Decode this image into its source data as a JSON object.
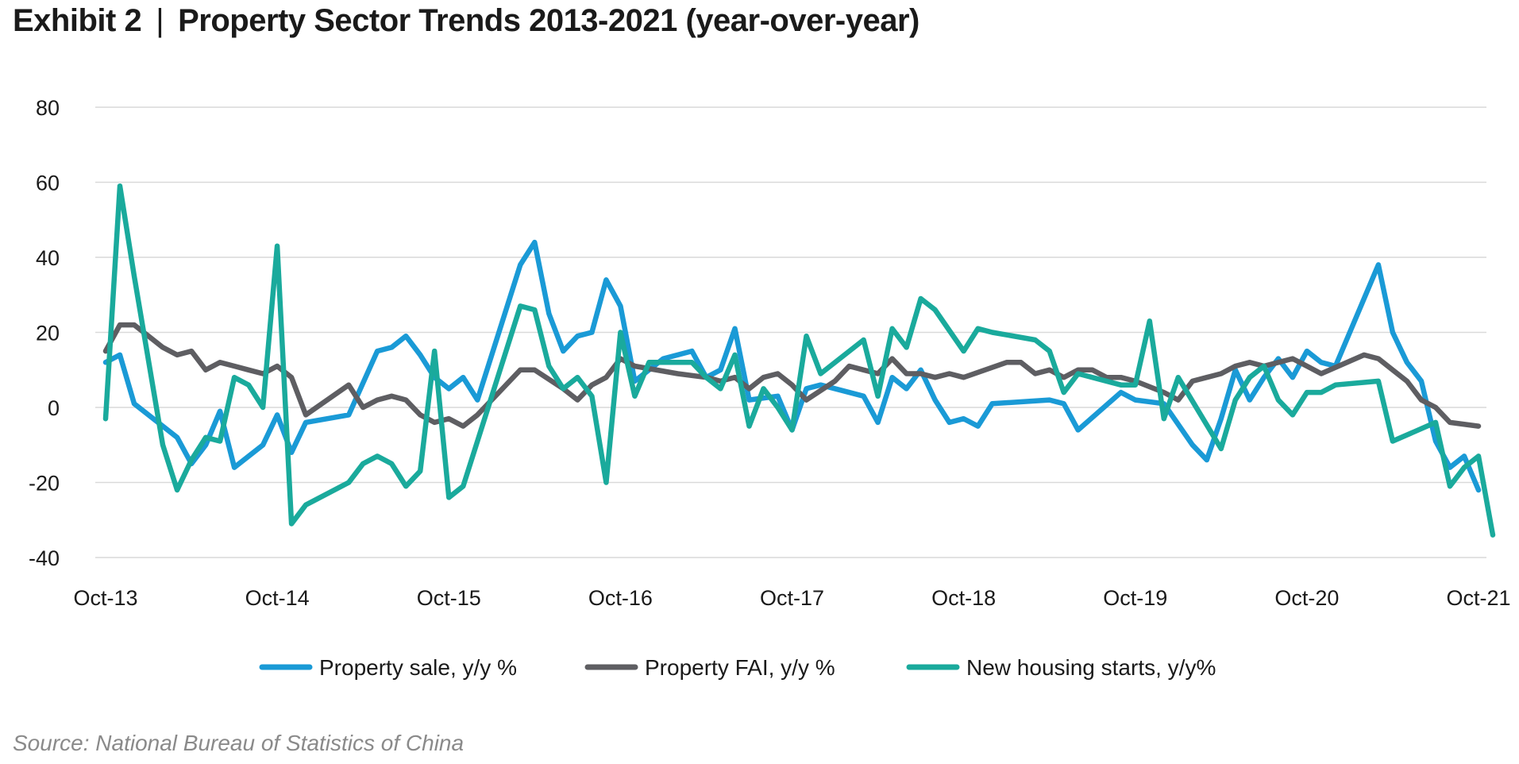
{
  "header": {
    "exhibit": "Exhibit 2",
    "separator": "|",
    "title": "Property Sector Trends 2013-2021 (year-over-year)"
  },
  "footer": {
    "source": "Source: National Bureau of Statistics of China"
  },
  "chart_data": {
    "type": "line",
    "xlabel": "",
    "ylabel": "",
    "ylim": [
      -40,
      80
    ],
    "yticks": [
      80,
      60,
      40,
      20,
      0,
      -20,
      -40
    ],
    "x_tick_labels": [
      "Oct-13",
      "Oct-14",
      "Oct-15",
      "Oct-16",
      "Oct-17",
      "Oct-18",
      "Oct-19",
      "Oct-20",
      "Oct-21"
    ],
    "x_tick_months": [
      0,
      12,
      24,
      36,
      48,
      60,
      72,
      84,
      96
    ],
    "x_range_months": [
      0,
      96
    ],
    "grid": "horizontal",
    "legend_position": "bottom",
    "series": [
      {
        "name": "Property sale, y/y %",
        "color": "#1a9ad6",
        "points": [
          [
            0,
            12
          ],
          [
            1,
            14
          ],
          [
            2,
            1
          ],
          [
            5,
            -8
          ],
          [
            6,
            -15
          ],
          [
            7,
            -10
          ],
          [
            8,
            -1
          ],
          [
            9,
            -16
          ],
          [
            10,
            -13
          ],
          [
            11,
            -10
          ],
          [
            12,
            -2
          ],
          [
            13,
            -12
          ],
          [
            14,
            -4
          ],
          [
            17,
            -2
          ],
          [
            19,
            15
          ],
          [
            20,
            16
          ],
          [
            21,
            19
          ],
          [
            22,
            14
          ],
          [
            23,
            8
          ],
          [
            24,
            5
          ],
          [
            25,
            8
          ],
          [
            26,
            2
          ],
          [
            29,
            38
          ],
          [
            30,
            44
          ],
          [
            31,
            25
          ],
          [
            32,
            15
          ],
          [
            33,
            19
          ],
          [
            34,
            20
          ],
          [
            35,
            34
          ],
          [
            36,
            27
          ],
          [
            37,
            7
          ],
          [
            39,
            13
          ],
          [
            41,
            15
          ],
          [
            42,
            8
          ],
          [
            43,
            10
          ],
          [
            44,
            21
          ],
          [
            45,
            2
          ],
          [
            47,
            3
          ],
          [
            48,
            -6
          ],
          [
            49,
            5
          ],
          [
            50,
            6
          ],
          [
            53,
            3
          ],
          [
            54,
            -4
          ],
          [
            55,
            8
          ],
          [
            56,
            5
          ],
          [
            57,
            10
          ],
          [
            58,
            2
          ],
          [
            59,
            -4
          ],
          [
            60,
            -3
          ],
          [
            61,
            -5
          ],
          [
            62,
            1
          ],
          [
            66,
            2
          ],
          [
            67,
            1
          ],
          [
            68,
            -6
          ],
          [
            71,
            4
          ],
          [
            72,
            2
          ],
          [
            74,
            1
          ],
          [
            76,
            -10
          ],
          [
            77,
            -14
          ],
          [
            78,
            -3
          ],
          [
            79,
            10
          ],
          [
            80,
            2
          ],
          [
            81,
            8
          ],
          [
            82,
            13
          ],
          [
            83,
            8
          ],
          [
            84,
            15
          ],
          [
            85,
            12
          ],
          [
            86,
            11
          ],
          [
            89,
            38
          ],
          [
            90,
            20
          ],
          [
            91,
            12
          ],
          [
            92,
            7
          ],
          [
            93,
            -9
          ],
          [
            94,
            -16
          ],
          [
            95,
            -13
          ],
          [
            96,
            -22
          ]
        ]
      },
      {
        "name": "Property FAI, y/y %",
        "color": "#5e5e62",
        "points": [
          [
            0,
            15
          ],
          [
            1,
            22
          ],
          [
            2,
            22
          ],
          [
            3,
            19
          ],
          [
            4,
            16
          ],
          [
            5,
            14
          ],
          [
            6,
            15
          ],
          [
            7,
            10
          ],
          [
            8,
            12
          ],
          [
            9,
            11
          ],
          [
            10,
            10
          ],
          [
            11,
            9
          ],
          [
            12,
            11
          ],
          [
            13,
            8
          ],
          [
            14,
            -2
          ],
          [
            17,
            6
          ],
          [
            18,
            0
          ],
          [
            19,
            2
          ],
          [
            20,
            3
          ],
          [
            21,
            2
          ],
          [
            22,
            -2
          ],
          [
            23,
            -4
          ],
          [
            24,
            -3
          ],
          [
            25,
            -5
          ],
          [
            26,
            -2
          ],
          [
            29,
            10
          ],
          [
            30,
            10
          ],
          [
            32,
            5
          ],
          [
            33,
            2
          ],
          [
            34,
            6
          ],
          [
            35,
            8
          ],
          [
            36,
            13
          ],
          [
            37,
            11
          ],
          [
            40,
            9
          ],
          [
            42,
            8
          ],
          [
            43,
            7
          ],
          [
            44,
            8
          ],
          [
            45,
            5
          ],
          [
            46,
            8
          ],
          [
            47,
            9
          ],
          [
            48,
            6
          ],
          [
            49,
            2
          ],
          [
            51,
            7
          ],
          [
            52,
            11
          ],
          [
            53,
            10
          ],
          [
            54,
            9
          ],
          [
            55,
            13
          ],
          [
            56,
            9
          ],
          [
            57,
            9
          ],
          [
            58,
            8
          ],
          [
            59,
            9
          ],
          [
            60,
            8
          ],
          [
            63,
            12
          ],
          [
            64,
            12
          ],
          [
            65,
            9
          ],
          [
            66,
            10
          ],
          [
            67,
            8
          ],
          [
            68,
            10
          ],
          [
            69,
            10
          ],
          [
            70,
            8
          ],
          [
            71,
            8
          ],
          [
            72,
            7
          ],
          [
            74,
            4
          ],
          [
            75,
            2
          ],
          [
            76,
            7
          ],
          [
            77,
            8
          ],
          [
            78,
            9
          ],
          [
            79,
            11
          ],
          [
            80,
            12
          ],
          [
            81,
            11
          ],
          [
            82,
            12
          ],
          [
            83,
            13
          ],
          [
            84,
            11
          ],
          [
            85,
            9
          ],
          [
            88,
            14
          ],
          [
            89,
            13
          ],
          [
            90,
            10
          ],
          [
            91,
            7
          ],
          [
            92,
            2
          ],
          [
            93,
            0
          ],
          [
            94,
            -4
          ],
          [
            96,
            -5
          ]
        ]
      },
      {
        "name": "New housing starts, y/y%",
        "color": "#1aaa9c",
        "points": [
          [
            0,
            -3
          ],
          [
            1,
            59
          ],
          [
            2,
            35
          ],
          [
            4,
            -10
          ],
          [
            5,
            -22
          ],
          [
            6,
            -14
          ],
          [
            7,
            -8
          ],
          [
            8,
            -9
          ],
          [
            9,
            8
          ],
          [
            10,
            6
          ],
          [
            11,
            0
          ],
          [
            12,
            43
          ],
          [
            13,
            -31
          ],
          [
            14,
            -26
          ],
          [
            17,
            -20
          ],
          [
            18,
            -15
          ],
          [
            19,
            -13
          ],
          [
            20,
            -15
          ],
          [
            21,
            -21
          ],
          [
            22,
            -17
          ],
          [
            23,
            15
          ],
          [
            24,
            -24
          ],
          [
            25,
            -21
          ],
          [
            29,
            27
          ],
          [
            30,
            26
          ],
          [
            31,
            11
          ],
          [
            32,
            5
          ],
          [
            33,
            8
          ],
          [
            34,
            3
          ],
          [
            35,
            -20
          ],
          [
            36,
            20
          ],
          [
            37,
            3
          ],
          [
            38,
            12
          ],
          [
            41,
            12
          ],
          [
            42,
            8
          ],
          [
            43,
            5
          ],
          [
            44,
            14
          ],
          [
            45,
            -5
          ],
          [
            46,
            5
          ],
          [
            47,
            0
          ],
          [
            48,
            -6
          ],
          [
            49,
            19
          ],
          [
            50,
            9
          ],
          [
            53,
            18
          ],
          [
            54,
            3
          ],
          [
            55,
            21
          ],
          [
            56,
            16
          ],
          [
            57,
            29
          ],
          [
            58,
            26
          ],
          [
            60,
            15
          ],
          [
            61,
            21
          ],
          [
            62,
            20
          ],
          [
            65,
            18
          ],
          [
            66,
            15
          ],
          [
            67,
            4
          ],
          [
            68,
            9
          ],
          [
            71,
            6
          ],
          [
            72,
            6
          ],
          [
            73,
            23
          ],
          [
            74,
            -3
          ],
          [
            75,
            8
          ],
          [
            78,
            -11
          ],
          [
            79,
            2
          ],
          [
            80,
            8
          ],
          [
            81,
            11
          ],
          [
            82,
            2
          ],
          [
            83,
            -2
          ],
          [
            84,
            4
          ],
          [
            85,
            4
          ],
          [
            86,
            6
          ],
          [
            89,
            7
          ],
          [
            90,
            -9
          ],
          [
            93,
            -4
          ],
          [
            94,
            -21
          ],
          [
            95,
            -16
          ],
          [
            96,
            -13
          ],
          [
            97,
            -34
          ]
        ]
      }
    ]
  }
}
